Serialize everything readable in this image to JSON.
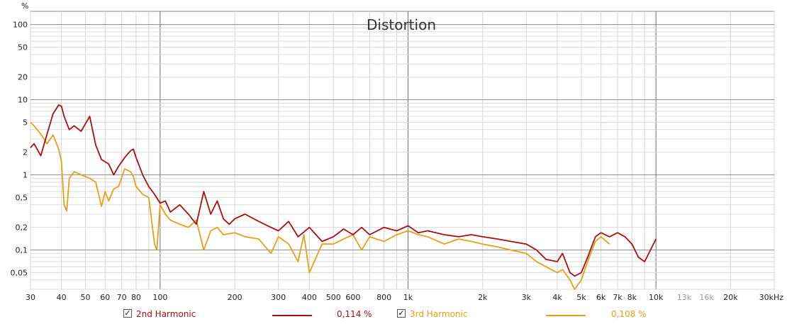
{
  "chart_data": {
    "type": "line",
    "title": "Distortion",
    "y_unit": "%",
    "x_unit": "kHz",
    "x_scale": "log",
    "y_scale": "log",
    "xlim": [
      30,
      30000
    ],
    "ylim": [
      0.03,
      150
    ],
    "grid": true,
    "legend_placement": "bottom",
    "x_tick_labels": [
      {
        "v": 30,
        "t": "30"
      },
      {
        "v": 40,
        "t": "40"
      },
      {
        "v": 50,
        "t": "50"
      },
      {
        "v": 60,
        "t": "60"
      },
      {
        "v": 70,
        "t": "70"
      },
      {
        "v": 80,
        "t": "80"
      },
      {
        "v": 100,
        "t": "100"
      },
      {
        "v": 200,
        "t": "200"
      },
      {
        "v": 300,
        "t": "300"
      },
      {
        "v": 400,
        "t": "400"
      },
      {
        "v": 500,
        "t": "500"
      },
      {
        "v": 600,
        "t": "600"
      },
      {
        "v": 800,
        "t": "800"
      },
      {
        "v": 1000,
        "t": "1k"
      },
      {
        "v": 2000,
        "t": "2k"
      },
      {
        "v": 3000,
        "t": "3k"
      },
      {
        "v": 4000,
        "t": "4k"
      },
      {
        "v": 5000,
        "t": "5k"
      },
      {
        "v": 6000,
        "t": "6k"
      },
      {
        "v": 7000,
        "t": "7k"
      },
      {
        "v": 8000,
        "t": "8k"
      },
      {
        "v": 10000,
        "t": "10k"
      },
      {
        "v": 13000,
        "t": "13k",
        "grey": true
      },
      {
        "v": 16000,
        "t": "16k",
        "grey": true
      },
      {
        "v": 20000,
        "t": "20k"
      },
      {
        "v": 30000,
        "t": "30kHz"
      }
    ],
    "y_tick_labels": [
      {
        "v": 100,
        "t": "100"
      },
      {
        "v": 50,
        "t": "50"
      },
      {
        "v": 20,
        "t": "20"
      },
      {
        "v": 10,
        "t": "10"
      },
      {
        "v": 5,
        "t": "5"
      },
      {
        "v": 2,
        "t": "2"
      },
      {
        "v": 1,
        "t": "1"
      },
      {
        "v": 0.5,
        "t": "0,5"
      },
      {
        "v": 0.2,
        "t": "0,2"
      },
      {
        "v": 0.1,
        "t": "0,1"
      },
      {
        "v": 0.05,
        "t": "0,05"
      }
    ],
    "series": [
      {
        "name": "2nd Harmonic",
        "color": "#a81010",
        "readout": "0,114 %",
        "x": [
          30,
          31,
          33,
          35,
          37,
          39,
          40,
          41,
          43,
          45,
          48,
          52,
          55,
          58,
          62,
          65,
          68,
          72,
          76,
          78,
          80,
          85,
          90,
          95,
          100,
          105,
          110,
          120,
          130,
          140,
          150,
          160,
          170,
          180,
          190,
          200,
          220,
          250,
          280,
          300,
          330,
          360,
          400,
          450,
          500,
          550,
          600,
          650,
          700,
          800,
          900,
          1000,
          1100,
          1200,
          1400,
          1600,
          1800,
          2000,
          2300,
          2600,
          3000,
          3300,
          3600,
          4000,
          4200,
          4500,
          4700,
          5000,
          5300,
          5700,
          6000,
          6500,
          7000,
          7500,
          8000,
          8500,
          9000,
          9500,
          10000
        ],
        "y": [
          2.3,
          2.6,
          1.8,
          3.5,
          6.5,
          8.5,
          8.2,
          6.0,
          4.0,
          4.5,
          3.8,
          6.0,
          2.5,
          1.6,
          1.4,
          1.0,
          1.3,
          1.7,
          2.1,
          2.2,
          1.7,
          1.0,
          0.7,
          0.55,
          0.42,
          0.45,
          0.32,
          0.4,
          0.3,
          0.22,
          0.6,
          0.3,
          0.45,
          0.26,
          0.22,
          0.26,
          0.3,
          0.24,
          0.2,
          0.18,
          0.24,
          0.15,
          0.2,
          0.13,
          0.15,
          0.19,
          0.16,
          0.2,
          0.16,
          0.2,
          0.18,
          0.21,
          0.17,
          0.18,
          0.16,
          0.15,
          0.16,
          0.15,
          0.14,
          0.13,
          0.12,
          0.1,
          0.075,
          0.07,
          0.09,
          0.05,
          0.045,
          0.05,
          0.08,
          0.15,
          0.17,
          0.15,
          0.17,
          0.15,
          0.12,
          0.08,
          0.07,
          0.1,
          0.14
        ]
      },
      {
        "name": "3rd Harmonic",
        "color": "#e6a017",
        "readout": "0,108 %",
        "x": [
          30,
          31,
          33,
          35,
          37,
          39,
          40,
          41,
          42,
          43,
          45,
          48,
          52,
          55,
          58,
          60,
          62,
          65,
          68,
          72,
          76,
          78,
          80,
          85,
          90,
          95,
          97,
          100,
          105,
          110,
          120,
          130,
          140,
          150,
          160,
          170,
          180,
          200,
          220,
          250,
          280,
          300,
          330,
          360,
          380,
          400,
          450,
          500,
          550,
          600,
          650,
          700,
          800,
          900,
          1000,
          1100,
          1200,
          1400,
          1600,
          1800,
          2000,
          2300,
          2600,
          3000,
          3300,
          3600,
          4000,
          4200,
          4500,
          4700,
          5000,
          5300,
          5700,
          6000,
          6500
        ],
        "y": [
          5.0,
          4.5,
          3.5,
          2.6,
          3.4,
          2.2,
          1.5,
          0.4,
          0.33,
          0.9,
          1.1,
          1.0,
          0.9,
          0.8,
          0.38,
          0.6,
          0.45,
          0.65,
          0.7,
          1.2,
          1.1,
          0.95,
          0.7,
          0.55,
          0.5,
          0.12,
          0.1,
          0.4,
          0.3,
          0.25,
          0.22,
          0.2,
          0.25,
          0.1,
          0.18,
          0.2,
          0.16,
          0.17,
          0.15,
          0.14,
          0.09,
          0.15,
          0.12,
          0.07,
          0.16,
          0.05,
          0.12,
          0.12,
          0.14,
          0.16,
          0.1,
          0.15,
          0.13,
          0.16,
          0.18,
          0.16,
          0.15,
          0.12,
          0.14,
          0.13,
          0.12,
          0.11,
          0.1,
          0.09,
          0.07,
          0.06,
          0.05,
          0.055,
          0.04,
          0.03,
          0.04,
          0.07,
          0.13,
          0.15,
          0.12
        ]
      }
    ]
  }
}
